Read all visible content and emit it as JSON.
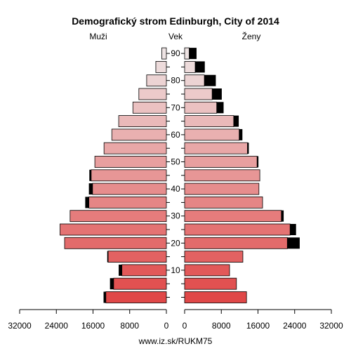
{
  "chart_data": {
    "type": "bar",
    "title": "Demografický strom Edinburgh, City of 2014",
    "left_label": "Muži",
    "center_label": "Vek",
    "right_label": "Ženy",
    "footer": "www.iz.sk/RUKM75",
    "age_ticks": [
      "10",
      "20",
      "30",
      "40",
      "50",
      "60",
      "70",
      "80",
      "90"
    ],
    "left_axis_ticks": [
      "32000",
      "24000",
      "16000",
      "8000",
      "0"
    ],
    "right_axis_ticks": [
      "0",
      "8000",
      "16000",
      "24000",
      "32000"
    ],
    "axis_max": 32000,
    "age_groups": [
      "0-4",
      "5-9",
      "10-14",
      "15-19",
      "20-24",
      "25-29",
      "30-34",
      "35-39",
      "40-44",
      "45-49",
      "50-54",
      "55-59",
      "60-64",
      "65-69",
      "70-74",
      "75-79",
      "80-84",
      "85-89",
      "90+"
    ],
    "series": [
      {
        "name": "Muži",
        "values": [
          13200,
          11500,
          9700,
          12700,
          22200,
          23200,
          21000,
          16900,
          16100,
          16400,
          15600,
          13600,
          11900,
          10400,
          7300,
          6000,
          4300,
          2300,
          1000
        ],
        "excess": [
          500,
          800,
          700,
          200,
          0,
          0,
          0,
          800,
          800,
          400,
          0,
          0,
          0,
          0,
          0,
          0,
          0,
          0,
          0
        ]
      },
      {
        "name": "Ženy",
        "values": [
          13500,
          11300,
          9800,
          12700,
          22400,
          23000,
          21100,
          17000,
          16200,
          16400,
          15800,
          13700,
          11900,
          10700,
          7000,
          6000,
          4300,
          2300,
          1000
        ],
        "excess": [
          0,
          0,
          0,
          0,
          2700,
          1300,
          500,
          0,
          0,
          0,
          300,
          300,
          700,
          1100,
          1500,
          2100,
          2500,
          2100,
          1600
        ]
      }
    ]
  }
}
